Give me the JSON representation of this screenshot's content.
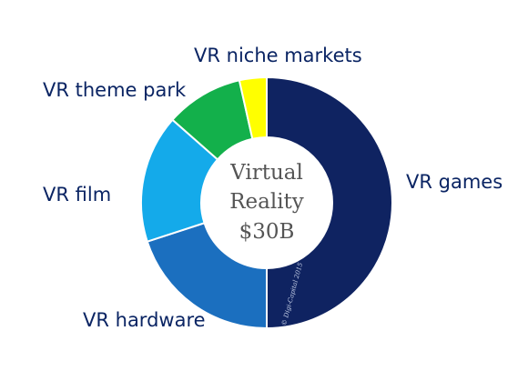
{
  "chart_data": {
    "type": "pie",
    "donut": true,
    "center_text": [
      "Virtual",
      "Reality",
      "$30B"
    ],
    "categories": [
      "VR games",
      "VR hardware",
      "VR film",
      "VR theme park",
      "VR niche markets"
    ],
    "values": [
      50,
      20,
      16.5,
      10,
      3.5
    ],
    "colors": [
      "#0f2361",
      "#1b6fbf",
      "#14aaea",
      "#13b04b",
      "#ffff00"
    ],
    "watermark": "© Digi-Capital 2015"
  }
}
